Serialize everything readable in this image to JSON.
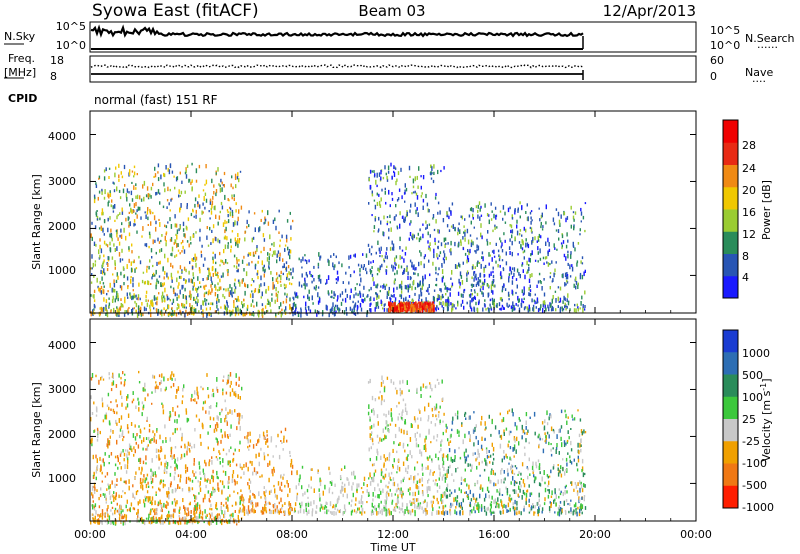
{
  "header": {
    "station": "Syowa East (fitACF)",
    "beam": "Beam 03",
    "date": "12/Apr/2013"
  },
  "noise_panel": {
    "left_label": "N.Sky",
    "left_ticks": [
      "10^5",
      "10^0"
    ],
    "right_ticks": [
      "10^5",
      "10^0"
    ],
    "right_label": "N.Search",
    "right_legend": "......"
  },
  "freq_panel": {
    "left_label_line1": "Freq.",
    "left_label_line2": "[MHz]",
    "left_ticks": [
      "18",
      "8"
    ],
    "right_ticks": [
      "60",
      "0"
    ],
    "right_label": "Nave",
    "right_legend": "...."
  },
  "cpid": {
    "label": "CPID",
    "value": "normal (fast) 151 RF"
  },
  "x_axis": {
    "title": "Time UT",
    "ticks": [
      "00:00",
      "04:00",
      "08:00",
      "12:00",
      "16:00",
      "20:00",
      "00:00"
    ]
  },
  "chart_data": [
    {
      "type": "heatmap",
      "title": "",
      "xlabel": "Time UT",
      "ylabel": "Slant Range [km]",
      "xlim": [
        0,
        24
      ],
      "ylim": [
        200,
        4500
      ],
      "yticks": [
        "1000",
        "2000",
        "3000",
        "4000"
      ],
      "colorbar_label": "Power [dB]",
      "colorbar_ticks": [
        "4",
        "8",
        "12",
        "16",
        "20",
        "24",
        "28"
      ],
      "colorbar_colors": [
        "#1a1aff",
        "#2855b4",
        "#2a8c5a",
        "#9acc32",
        "#f0c800",
        "#f08a14",
        "#e82a14",
        "#f00000"
      ],
      "data_regions": [
        {
          "time": [
            0.0,
            6.0
          ],
          "range": [
            200,
            3400
          ],
          "level": "12-20 dB"
        },
        {
          "time": [
            6.0,
            8.0
          ],
          "range": [
            200,
            2400
          ],
          "level": "8-20 dB"
        },
        {
          "time": [
            8.0,
            11.0
          ],
          "range": [
            200,
            1500
          ],
          "level": "4-8 dB"
        },
        {
          "time": [
            11.0,
            14.0
          ],
          "range": [
            300,
            3400
          ],
          "level": "4-12 dB"
        },
        {
          "time": [
            11.8,
            13.6
          ],
          "range": [
            300,
            450
          ],
          "level": "24-28 dB"
        },
        {
          "time": [
            14.0,
            19.6
          ],
          "range": [
            300,
            2600
          ],
          "level": "4-12 dB"
        }
      ]
    },
    {
      "type": "heatmap",
      "title": "",
      "xlabel": "Time UT",
      "ylabel": "Slant Range [km]",
      "xlim": [
        0,
        24
      ],
      "ylim": [
        200,
        4500
      ],
      "yticks": [
        "1000",
        "2000",
        "3000",
        "4000"
      ],
      "colorbar_label": "Velocity [m s^-1]",
      "colorbar_ticks": [
        "1000",
        "500",
        "100",
        "25",
        "-25",
        "-100",
        "-500",
        "-1000"
      ],
      "colorbar_colors": [
        "#1a3cd2",
        "#2d6eb4",
        "#2a8c5a",
        "#3cc83c",
        "#c8c8c8",
        "#f0a000",
        "#f07814",
        "#ff1e00"
      ],
      "data_regions": [
        {
          "time": [
            0.0,
            6.0
          ],
          "range": [
            200,
            3400
          ],
          "level": "-100 to -500 m/s"
        },
        {
          "time": [
            6.0,
            8.0
          ],
          "range": [
            400,
            2200
          ],
          "level": "-100 m/s"
        },
        {
          "time": [
            8.0,
            11.0
          ],
          "range": [
            400,
            1400
          ],
          "level": "-25 to 25 m/s"
        },
        {
          "time": [
            11.0,
            14.0
          ],
          "range": [
            400,
            3300
          ],
          "level": "-25 to 25 m/s"
        },
        {
          "time": [
            14.0,
            19.6
          ],
          "range": [
            400,
            2600
          ],
          "level": "25 to 500 m/s"
        }
      ]
    }
  ]
}
